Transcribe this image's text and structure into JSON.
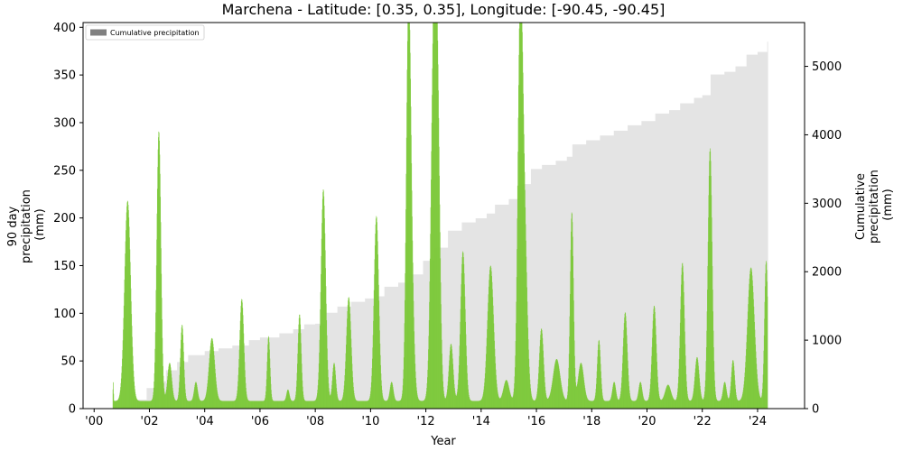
{
  "chart_data": {
    "type": "bar",
    "title": "Marchena - Latitude: [0.35, 0.35], Longitude: [-90.45, -90.45]",
    "xlabel": "Year",
    "ylabel_left": [
      "90 day",
      "precipitation",
      "(mm)"
    ],
    "ylabel_right": [
      "Cumulative",
      "precipitation",
      "(mm)"
    ],
    "xlim": [
      1999.6,
      2025.7
    ],
    "ylim_left": [
      0,
      405
    ],
    "ylim_right": [
      0,
      5640
    ],
    "x_ticks": [
      2000,
      2002,
      2004,
      2006,
      2008,
      2010,
      2012,
      2014,
      2016,
      2018,
      2020,
      2022,
      2024
    ],
    "x_tick_labels": [
      "'00",
      "'02",
      "'04",
      "'06",
      "'08",
      "'10",
      "'12",
      "'14",
      "'16",
      "'18",
      "'20",
      "'22",
      "'24"
    ],
    "y_ticks_left": [
      0,
      50,
      100,
      150,
      200,
      250,
      300,
      350,
      400
    ],
    "y_ticks_right": [
      0,
      1000,
      2000,
      3000,
      4000,
      5000
    ],
    "legend": {
      "label": "Cumulative precipitation",
      "placement": "top-left"
    },
    "colors": {
      "bars": "#7cc93a",
      "cumulative": "#e4e4e4",
      "legend_patch": "#808080"
    },
    "series": [
      {
        "kind": "cumulative",
        "points": [
          [
            2000.67,
            0
          ],
          [
            2001.0,
            30
          ],
          [
            2001.4,
            130
          ],
          [
            2001.9,
            300
          ],
          [
            2002.3,
            400
          ],
          [
            2002.6,
            560
          ],
          [
            2003.0,
            680
          ],
          [
            2003.4,
            780
          ],
          [
            2004.0,
            840
          ],
          [
            2004.5,
            880
          ],
          [
            2005.0,
            920
          ],
          [
            2005.6,
            1000
          ],
          [
            2006.0,
            1040
          ],
          [
            2006.7,
            1100
          ],
          [
            2007.2,
            1160
          ],
          [
            2007.6,
            1230
          ],
          [
            2008.0,
            1240
          ],
          [
            2008.4,
            1400
          ],
          [
            2008.8,
            1490
          ],
          [
            2009.3,
            1560
          ],
          [
            2009.8,
            1610
          ],
          [
            2010.2,
            1640
          ],
          [
            2010.5,
            1780
          ],
          [
            2011.0,
            1840
          ],
          [
            2011.4,
            1960
          ],
          [
            2011.9,
            2160
          ],
          [
            2012.3,
            2350
          ],
          [
            2012.8,
            2600
          ],
          [
            2013.3,
            2720
          ],
          [
            2013.8,
            2780
          ],
          [
            2014.2,
            2850
          ],
          [
            2014.5,
            2980
          ],
          [
            2015.0,
            3060
          ],
          [
            2015.4,
            3280
          ],
          [
            2015.8,
            3500
          ],
          [
            2016.2,
            3560
          ],
          [
            2016.7,
            3620
          ],
          [
            2017.1,
            3680
          ],
          [
            2017.3,
            3860
          ],
          [
            2017.8,
            3920
          ],
          [
            2018.3,
            3990
          ],
          [
            2018.8,
            4060
          ],
          [
            2019.3,
            4140
          ],
          [
            2019.8,
            4200
          ],
          [
            2020.3,
            4310
          ],
          [
            2020.8,
            4360
          ],
          [
            2021.2,
            4460
          ],
          [
            2021.7,
            4540
          ],
          [
            2022.0,
            4580
          ],
          [
            2022.3,
            4880
          ],
          [
            2022.8,
            4920
          ],
          [
            2023.2,
            5000
          ],
          [
            2023.6,
            5170
          ],
          [
            2024.0,
            5210
          ],
          [
            2024.35,
            5360
          ]
        ]
      },
      {
        "kind": "90-day",
        "baseline": 8,
        "start_x": 2000.67,
        "end_x": 2024.35,
        "peaks": [
          [
            2000.68,
            20,
            0.02
          ],
          [
            2001.2,
            210,
            0.22
          ],
          [
            2002.33,
            283,
            0.15
          ],
          [
            2002.72,
            40,
            0.15
          ],
          [
            2003.17,
            80,
            0.12
          ],
          [
            2003.67,
            20,
            0.12
          ],
          [
            2004.25,
            66,
            0.2
          ],
          [
            2005.33,
            107,
            0.15
          ],
          [
            2006.3,
            68,
            0.1
          ],
          [
            2007.0,
            12,
            0.1
          ],
          [
            2007.42,
            91,
            0.12
          ],
          [
            2008.28,
            222,
            0.17
          ],
          [
            2008.67,
            40,
            0.12
          ],
          [
            2009.2,
            109,
            0.17
          ],
          [
            2010.2,
            194,
            0.17
          ],
          [
            2010.75,
            20,
            0.12
          ],
          [
            2011.35,
            262,
            0.15
          ],
          [
            2011.42,
            200,
            0.2
          ],
          [
            2012.28,
            384,
            0.2
          ],
          [
            2012.42,
            230,
            0.17
          ],
          [
            2012.9,
            60,
            0.15
          ],
          [
            2013.33,
            157,
            0.17
          ],
          [
            2014.33,
            142,
            0.22
          ],
          [
            2014.9,
            22,
            0.2
          ],
          [
            2015.4,
            378,
            0.17
          ],
          [
            2015.55,
            180,
            0.2
          ],
          [
            2016.17,
            76,
            0.15
          ],
          [
            2016.72,
            44,
            0.25
          ],
          [
            2017.27,
            198,
            0.12
          ],
          [
            2017.6,
            40,
            0.2
          ],
          [
            2018.25,
            64,
            0.12
          ],
          [
            2018.8,
            20,
            0.12
          ],
          [
            2019.2,
            93,
            0.15
          ],
          [
            2019.75,
            20,
            0.12
          ],
          [
            2020.25,
            100,
            0.15
          ],
          [
            2020.75,
            17,
            0.2
          ],
          [
            2021.27,
            145,
            0.15
          ],
          [
            2021.8,
            46,
            0.15
          ],
          [
            2022.27,
            265,
            0.15
          ],
          [
            2022.8,
            20,
            0.12
          ],
          [
            2023.1,
            43,
            0.12
          ],
          [
            2023.75,
            140,
            0.25
          ],
          [
            2024.3,
            147,
            0.12
          ]
        ]
      }
    ]
  }
}
